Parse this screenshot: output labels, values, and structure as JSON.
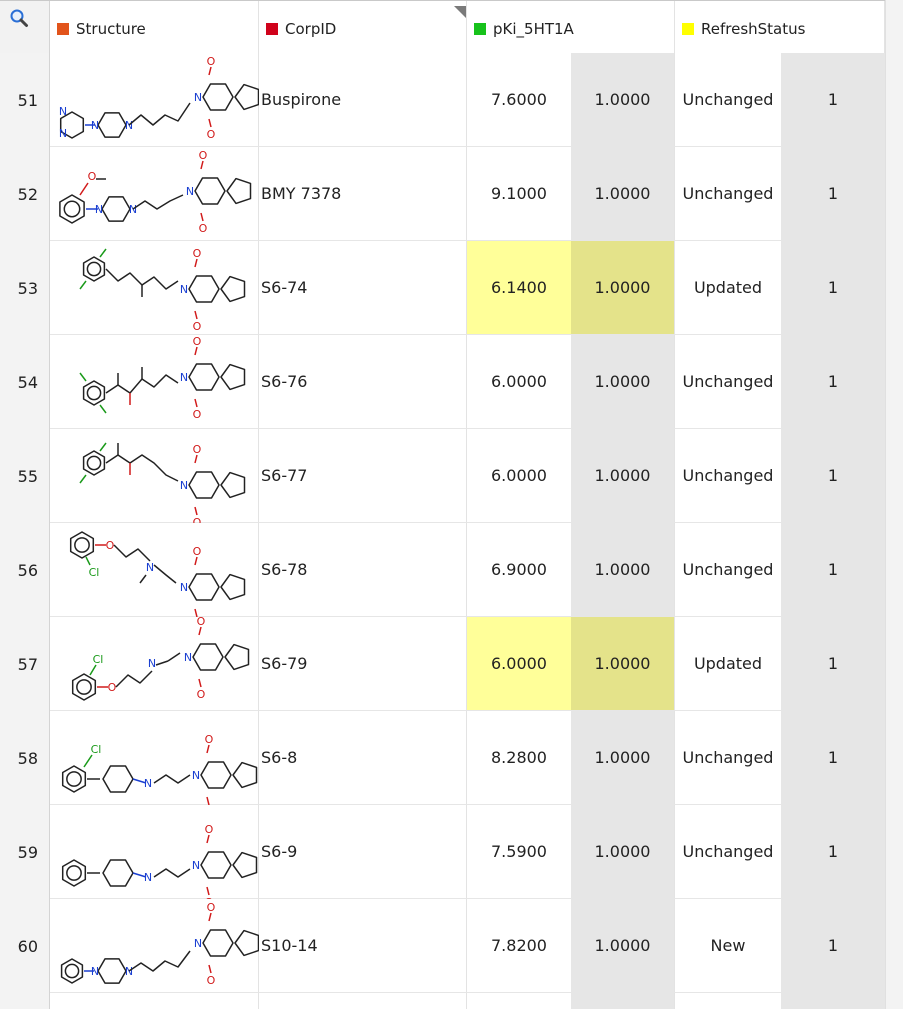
{
  "colors": {
    "structure_swatch": "#e2541b",
    "corpid_swatch": "#d0021b",
    "pki_swatch": "#17c21b",
    "refresh_swatch": "#ffff00",
    "highlight": "#ffff99",
    "highlight_weight": "#e4e38a",
    "weight_bg": "#e6e6e6"
  },
  "corner": {
    "icon": "zoom-search-icon"
  },
  "columns": {
    "structure": "Structure",
    "corpid": "CorpID",
    "pki": "pKi_5HT1A",
    "refresh": "RefreshStatus"
  },
  "rows": [
    {
      "num": "51",
      "corpid": "Buspirone",
      "pki": "7.6000",
      "pki_weight": "1.0000",
      "status": "Unchanged",
      "status_weight": "1",
      "highlight": false
    },
    {
      "num": "52",
      "corpid": "BMY 7378",
      "pki": "9.1000",
      "pki_weight": "1.0000",
      "status": "Unchanged",
      "status_weight": "1",
      "highlight": false
    },
    {
      "num": "53",
      "corpid": "S6-74",
      "pki": "6.1400",
      "pki_weight": "1.0000",
      "status": "Updated",
      "status_weight": "1",
      "highlight": true
    },
    {
      "num": "54",
      "corpid": "S6-76",
      "pki": "6.0000",
      "pki_weight": "1.0000",
      "status": "Unchanged",
      "status_weight": "1",
      "highlight": false
    },
    {
      "num": "55",
      "corpid": "S6-77",
      "pki": "6.0000",
      "pki_weight": "1.0000",
      "status": "Unchanged",
      "status_weight": "1",
      "highlight": false
    },
    {
      "num": "56",
      "corpid": "S6-78",
      "pki": "6.9000",
      "pki_weight": "1.0000",
      "status": "Unchanged",
      "status_weight": "1",
      "highlight": false
    },
    {
      "num": "57",
      "corpid": "S6-79",
      "pki": "6.0000",
      "pki_weight": "1.0000",
      "status": "Updated",
      "status_weight": "1",
      "highlight": true
    },
    {
      "num": "58",
      "corpid": "S6-8",
      "pki": "8.2800",
      "pki_weight": "1.0000",
      "status": "Unchanged",
      "status_weight": "1",
      "highlight": false
    },
    {
      "num": "59",
      "corpid": "S6-9",
      "pki": "7.5900",
      "pki_weight": "1.0000",
      "status": "Unchanged",
      "status_weight": "1",
      "highlight": false
    },
    {
      "num": "60",
      "corpid": "S10-14",
      "pki": "7.8200",
      "pki_weight": "1.0000",
      "status": "New",
      "status_weight": "1",
      "highlight": false
    }
  ],
  "atoms": {
    "O": "O",
    "N": "N",
    "Cl": "Cl"
  }
}
